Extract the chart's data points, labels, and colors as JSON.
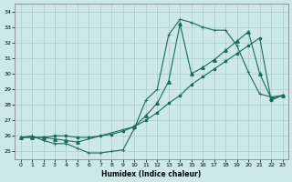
{
  "xlabel": "Humidex (Indice chaleur)",
  "xlim": [
    -0.5,
    23.5
  ],
  "ylim": [
    24.5,
    34.5
  ],
  "xticks": [
    0,
    1,
    2,
    3,
    4,
    5,
    6,
    7,
    8,
    9,
    10,
    11,
    12,
    13,
    14,
    15,
    16,
    17,
    18,
    19,
    20,
    21,
    22,
    23
  ],
  "yticks": [
    25,
    26,
    27,
    28,
    29,
    30,
    31,
    32,
    33,
    34
  ],
  "bg_color": "#cce8e8",
  "line_color": "#1a6b5a",
  "grid_color": "#aacccc",
  "line1_x": [
    0,
    1,
    2,
    3,
    4,
    5,
    6,
    7,
    8,
    9,
    10,
    11,
    12,
    13,
    14,
    15,
    16,
    17,
    18,
    19,
    20,
    21,
    22,
    23
  ],
  "line1_y": [
    25.9,
    26.0,
    25.7,
    25.5,
    25.5,
    25.2,
    24.9,
    24.9,
    25.0,
    25.1,
    26.5,
    28.3,
    29.0,
    32.5,
    33.5,
    33.3,
    33.0,
    32.8,
    32.8,
    31.8,
    30.1,
    28.7,
    28.5,
    28.6
  ],
  "line2_x": [
    0,
    1,
    2,
    3,
    4,
    5,
    6,
    7,
    8,
    9,
    10,
    11,
    12,
    13,
    14,
    15,
    16,
    17,
    18,
    19,
    20,
    21,
    22,
    23
  ],
  "line2_y": [
    25.9,
    25.9,
    25.9,
    26.0,
    26.0,
    25.9,
    25.9,
    26.0,
    26.1,
    26.3,
    26.6,
    27.0,
    27.5,
    28.1,
    28.6,
    29.3,
    29.8,
    30.3,
    30.8,
    31.3,
    31.8,
    32.3,
    28.3,
    28.6
  ],
  "line3_x": [
    0,
    1,
    2,
    3,
    4,
    5,
    10,
    11,
    12,
    13,
    14,
    15,
    16,
    17,
    18,
    19,
    20,
    21,
    22,
    23
  ],
  "line3_y": [
    25.9,
    25.9,
    25.9,
    25.8,
    25.7,
    25.6,
    26.6,
    27.3,
    28.1,
    29.5,
    33.2,
    30.0,
    30.4,
    30.9,
    31.5,
    32.1,
    32.7,
    30.0,
    28.4,
    28.6
  ]
}
